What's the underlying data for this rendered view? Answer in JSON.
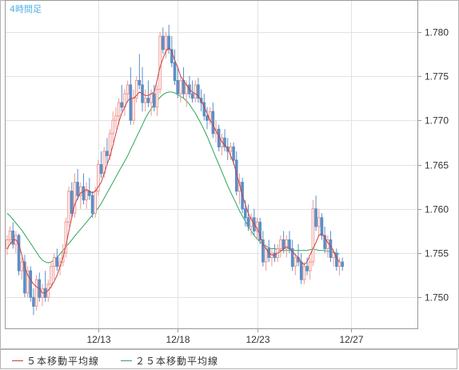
{
  "chart_data": {
    "type": "candlestick",
    "timeframe_label": "4時間足",
    "y_ticks": [
      "1.780",
      "1.775",
      "1.770",
      "1.765",
      "1.760",
      "1.755",
      "1.750"
    ],
    "y_tick_values": [
      1.78,
      1.775,
      1.77,
      1.765,
      1.76,
      1.755,
      1.75
    ],
    "ylim": [
      1.7465,
      1.7835
    ],
    "x_labels": [
      {
        "label": "12/13",
        "index": 31
      },
      {
        "label": "12/18",
        "index": 58
      },
      {
        "label": "12/23",
        "index": 85
      },
      {
        "label": "12/27",
        "index": 117
      }
    ],
    "n_slots": 140,
    "candles": [
      [
        1.7555,
        1.757,
        1.7548,
        1.7565
      ],
      [
        1.7565,
        1.758,
        1.756,
        1.7575
      ],
      [
        1.7575,
        1.7585,
        1.7555,
        1.756
      ],
      [
        1.756,
        1.7575,
        1.755,
        1.757
      ],
      [
        1.757,
        1.7572,
        1.7525,
        1.753
      ],
      [
        1.753,
        1.7545,
        1.752,
        1.754
      ],
      [
        1.754,
        1.7548,
        1.75,
        1.7505
      ],
      [
        1.7505,
        1.7535,
        1.75,
        1.753
      ],
      [
        1.753,
        1.7535,
        1.7495,
        1.75
      ],
      [
        1.75,
        1.751,
        1.748,
        1.749
      ],
      [
        1.749,
        1.7525,
        1.7485,
        1.752
      ],
      [
        1.752,
        1.7528,
        1.7495,
        1.75
      ],
      [
        1.75,
        1.7515,
        1.749,
        1.751
      ],
      [
        1.751,
        1.753,
        1.7495,
        1.75
      ],
      [
        1.75,
        1.752,
        1.7495,
        1.7515
      ],
      [
        1.7515,
        1.754,
        1.751,
        1.7535
      ],
      [
        1.7535,
        1.755,
        1.752,
        1.7545
      ],
      [
        1.7545,
        1.7555,
        1.753,
        1.7535
      ],
      [
        1.7535,
        1.7545,
        1.7525,
        1.754
      ],
      [
        1.754,
        1.756,
        1.7535,
        1.755
      ],
      [
        1.755,
        1.759,
        1.7545,
        1.7585
      ],
      [
        1.7585,
        1.7625,
        1.758,
        1.762
      ],
      [
        1.762,
        1.763,
        1.759,
        1.7595
      ],
      [
        1.7595,
        1.764,
        1.759,
        1.763
      ],
      [
        1.763,
        1.7645,
        1.761,
        1.7615
      ],
      [
        1.7615,
        1.763,
        1.76,
        1.7625
      ],
      [
        1.7625,
        1.764,
        1.7605,
        1.761
      ],
      [
        1.761,
        1.763,
        1.76,
        1.762
      ],
      [
        1.762,
        1.7635,
        1.761,
        1.7615
      ],
      [
        1.7615,
        1.762,
        1.759,
        1.7595
      ],
      [
        1.7595,
        1.7625,
        1.759,
        1.762
      ],
      [
        1.762,
        1.7655,
        1.7615,
        1.765
      ],
      [
        1.765,
        1.7665,
        1.7635,
        1.764
      ],
      [
        1.764,
        1.767,
        1.7635,
        1.7665
      ],
      [
        1.7665,
        1.768,
        1.765,
        1.766
      ],
      [
        1.766,
        1.769,
        1.7655,
        1.7685
      ],
      [
        1.7685,
        1.771,
        1.7675,
        1.77
      ],
      [
        1.77,
        1.7715,
        1.769,
        1.7705
      ],
      [
        1.7705,
        1.7725,
        1.7695,
        1.772
      ],
      [
        1.772,
        1.774,
        1.771,
        1.7715
      ],
      [
        1.7715,
        1.7735,
        1.7705,
        1.773
      ],
      [
        1.773,
        1.7745,
        1.772,
        1.774
      ],
      [
        1.774,
        1.776,
        1.7695,
        1.77
      ],
      [
        1.77,
        1.7735,
        1.7695,
        1.7725
      ],
      [
        1.7725,
        1.775,
        1.772,
        1.7745
      ],
      [
        1.7745,
        1.7775,
        1.7735,
        1.774
      ],
      [
        1.774,
        1.776,
        1.771,
        1.772
      ],
      [
        1.772,
        1.7735,
        1.771,
        1.7725
      ],
      [
        1.7725,
        1.7745,
        1.7715,
        1.772
      ],
      [
        1.772,
        1.7735,
        1.7705,
        1.773
      ],
      [
        1.773,
        1.774,
        1.771,
        1.7715
      ],
      [
        1.7715,
        1.774,
        1.7705,
        1.7735
      ],
      [
        1.7735,
        1.78,
        1.773,
        1.7795
      ],
      [
        1.7795,
        1.7805,
        1.7775,
        1.778
      ],
      [
        1.778,
        1.78,
        1.777,
        1.7795
      ],
      [
        1.7795,
        1.7808,
        1.7775,
        1.778
      ],
      [
        1.778,
        1.7795,
        1.776,
        1.7765
      ],
      [
        1.7765,
        1.778,
        1.774,
        1.7745
      ],
      [
        1.7745,
        1.776,
        1.7725,
        1.773
      ],
      [
        1.773,
        1.775,
        1.772,
        1.7745
      ],
      [
        1.7745,
        1.776,
        1.7725,
        1.773
      ],
      [
        1.773,
        1.7745,
        1.7715,
        1.774
      ],
      [
        1.774,
        1.775,
        1.7725,
        1.773
      ],
      [
        1.773,
        1.7745,
        1.772,
        1.7725
      ],
      [
        1.7725,
        1.7745,
        1.772,
        1.774
      ],
      [
        1.774,
        1.7748,
        1.772,
        1.7725
      ],
      [
        1.7725,
        1.7735,
        1.771,
        1.772
      ],
      [
        1.772,
        1.773,
        1.77,
        1.7705
      ],
      [
        1.7705,
        1.7715,
        1.769,
        1.77
      ],
      [
        1.77,
        1.7715,
        1.7695,
        1.771
      ],
      [
        1.771,
        1.772,
        1.768,
        1.7685
      ],
      [
        1.7685,
        1.77,
        1.7675,
        1.769
      ],
      [
        1.769,
        1.7695,
        1.7665,
        1.767
      ],
      [
        1.767,
        1.7685,
        1.766,
        1.768
      ],
      [
        1.768,
        1.769,
        1.7665,
        1.767
      ],
      [
        1.767,
        1.768,
        1.7655,
        1.7665
      ],
      [
        1.7665,
        1.7675,
        1.7655,
        1.767
      ],
      [
        1.767,
        1.7675,
        1.765,
        1.7655
      ],
      [
        1.7655,
        1.7665,
        1.7615,
        1.762
      ],
      [
        1.762,
        1.764,
        1.7605,
        1.763
      ],
      [
        1.763,
        1.7635,
        1.7595,
        1.76
      ],
      [
        1.76,
        1.761,
        1.758,
        1.759
      ],
      [
        1.759,
        1.7605,
        1.7575,
        1.758
      ],
      [
        1.758,
        1.7595,
        1.757,
        1.759
      ],
      [
        1.759,
        1.76,
        1.757,
        1.7575
      ],
      [
        1.7575,
        1.759,
        1.7565,
        1.7585
      ],
      [
        1.7585,
        1.759,
        1.756,
        1.7565
      ],
      [
        1.7565,
        1.7575,
        1.7535,
        1.754
      ],
      [
        1.754,
        1.756,
        1.753,
        1.7555
      ],
      [
        1.7555,
        1.7565,
        1.754,
        1.7545
      ],
      [
        1.7545,
        1.7555,
        1.7535,
        1.755
      ],
      [
        1.755,
        1.756,
        1.754,
        1.7545
      ],
      [
        1.7545,
        1.756,
        1.754,
        1.7555
      ],
      [
        1.7555,
        1.757,
        1.7545,
        1.7565
      ],
      [
        1.7565,
        1.7575,
        1.755,
        1.7555
      ],
      [
        1.7555,
        1.757,
        1.7545,
        1.7565
      ],
      [
        1.7565,
        1.7575,
        1.755,
        1.7555
      ],
      [
        1.7555,
        1.7565,
        1.753,
        1.7535
      ],
      [
        1.7535,
        1.755,
        1.7525,
        1.7545
      ],
      [
        1.7545,
        1.756,
        1.7535,
        1.754
      ],
      [
        1.754,
        1.755,
        1.7515,
        1.752
      ],
      [
        1.752,
        1.754,
        1.7515,
        1.7535
      ],
      [
        1.7535,
        1.7545,
        1.7525,
        1.753
      ],
      [
        1.753,
        1.7545,
        1.752,
        1.754
      ],
      [
        1.754,
        1.761,
        1.7535,
        1.76
      ],
      [
        1.76,
        1.7615,
        1.7575,
        1.758
      ],
      [
        1.758,
        1.76,
        1.757,
        1.759
      ],
      [
        1.759,
        1.7595,
        1.7565,
        1.757
      ],
      [
        1.757,
        1.758,
        1.755,
        1.7555
      ],
      [
        1.7555,
        1.757,
        1.7545,
        1.7565
      ],
      [
        1.7565,
        1.7575,
        1.754,
        1.7545
      ],
      [
        1.7545,
        1.7555,
        1.7535,
        1.755
      ],
      [
        1.755,
        1.7555,
        1.753,
        1.7535
      ],
      [
        1.7535,
        1.7545,
        1.7525,
        1.754
      ],
      [
        1.754,
        1.7545,
        1.753,
        1.7535
      ]
    ],
    "ma5": [
      1.7555,
      1.756,
      1.7565,
      1.7565,
      1.756,
      1.7548,
      1.7535,
      1.7525,
      1.752,
      1.7515,
      1.7512,
      1.751,
      1.7505,
      1.7505,
      1.7508,
      1.7512,
      1.7518,
      1.7525,
      1.7535,
      1.7545,
      1.7558,
      1.7575,
      1.759,
      1.7605,
      1.7612,
      1.7618,
      1.762,
      1.7622,
      1.762,
      1.7618,
      1.762,
      1.7625,
      1.763,
      1.764,
      1.765,
      1.766,
      1.7672,
      1.7685,
      1.7698,
      1.7708,
      1.7715,
      1.7722,
      1.7725,
      1.7725,
      1.7728,
      1.7732,
      1.773,
      1.7728,
      1.7728,
      1.773,
      1.7732,
      1.7745,
      1.776,
      1.777,
      1.7778,
      1.7782,
      1.7778,
      1.7768,
      1.776,
      1.775,
      1.7745,
      1.774,
      1.7735,
      1.7732,
      1.773,
      1.7728,
      1.7722,
      1.7715,
      1.7708,
      1.77,
      1.7695,
      1.7688,
      1.7682,
      1.7676,
      1.7672,
      1.7668,
      1.766,
      1.7652,
      1.764,
      1.7628,
      1.7615,
      1.7605,
      1.7595,
      1.7588,
      1.7583,
      1.7578,
      1.757,
      1.756,
      1.7555,
      1.755,
      1.7548,
      1.7548,
      1.755,
      1.7552,
      1.7555,
      1.7557,
      1.7555,
      1.7552,
      1.7548,
      1.7545,
      1.754,
      1.7537,
      1.754,
      1.7548,
      1.7555,
      1.7562,
      1.757,
      1.7572,
      1.7568,
      1.7562,
      1.7558,
      1.7552,
      1.7545,
      1.754
    ],
    "ma25": [
      1.7595,
      1.7592,
      1.7588,
      1.7584,
      1.758,
      1.7576,
      1.7571,
      1.7566,
      1.7561,
      1.7556,
      1.7551,
      1.7546,
      1.7542,
      1.754,
      1.7539,
      1.754,
      1.7542,
      1.7545,
      1.7549,
      1.7553,
      1.7557,
      1.7561,
      1.7565,
      1.7569,
      1.7573,
      1.7577,
      1.7581,
      1.7585,
      1.7589,
      1.7593,
      1.7597,
      1.7601,
      1.7606,
      1.7612,
      1.7618,
      1.7624,
      1.763,
      1.7636,
      1.7642,
      1.7648,
      1.7654,
      1.766,
      1.7667,
      1.7674,
      1.7681,
      1.7688,
      1.7695,
      1.7702,
      1.7708,
      1.7713,
      1.7718,
      1.7722,
      1.7726,
      1.7729,
      1.7731,
      1.7732,
      1.7732,
      1.7731,
      1.7729,
      1.7727,
      1.7725,
      1.7722,
      1.7718,
      1.7713,
      1.7708,
      1.7702,
      1.7696,
      1.7689,
      1.7682,
      1.7674,
      1.7666,
      1.7658,
      1.765,
      1.7642,
      1.7634,
      1.7626,
      1.7619,
      1.7612,
      1.7605,
      1.7598,
      1.7592,
      1.7586,
      1.758,
      1.7575,
      1.757,
      1.7566,
      1.7563,
      1.756,
      1.7558,
      1.7556,
      1.7555,
      1.7555,
      1.7554,
      1.7553,
      1.7553,
      1.7553,
      1.7553,
      1.7553,
      1.7553,
      1.7553,
      1.7553,
      1.7553,
      1.7553,
      1.7554,
      1.7554,
      1.7554,
      1.7553,
      1.7553,
      1.7553,
      1.7552,
      1.7552,
      1.7551,
      1.755,
      1.7549
    ],
    "up_color": "#ee9a94",
    "down_color": "#5b8fc7",
    "ma5_color": "#c94040",
    "ma25_color": "#2fa65a",
    "grid": true,
    "series": [
      {
        "name": "５本移動平均線",
        "color": "#c94040"
      },
      {
        "name": "２５本移動平均線",
        "color": "#2fa65a"
      }
    ]
  }
}
